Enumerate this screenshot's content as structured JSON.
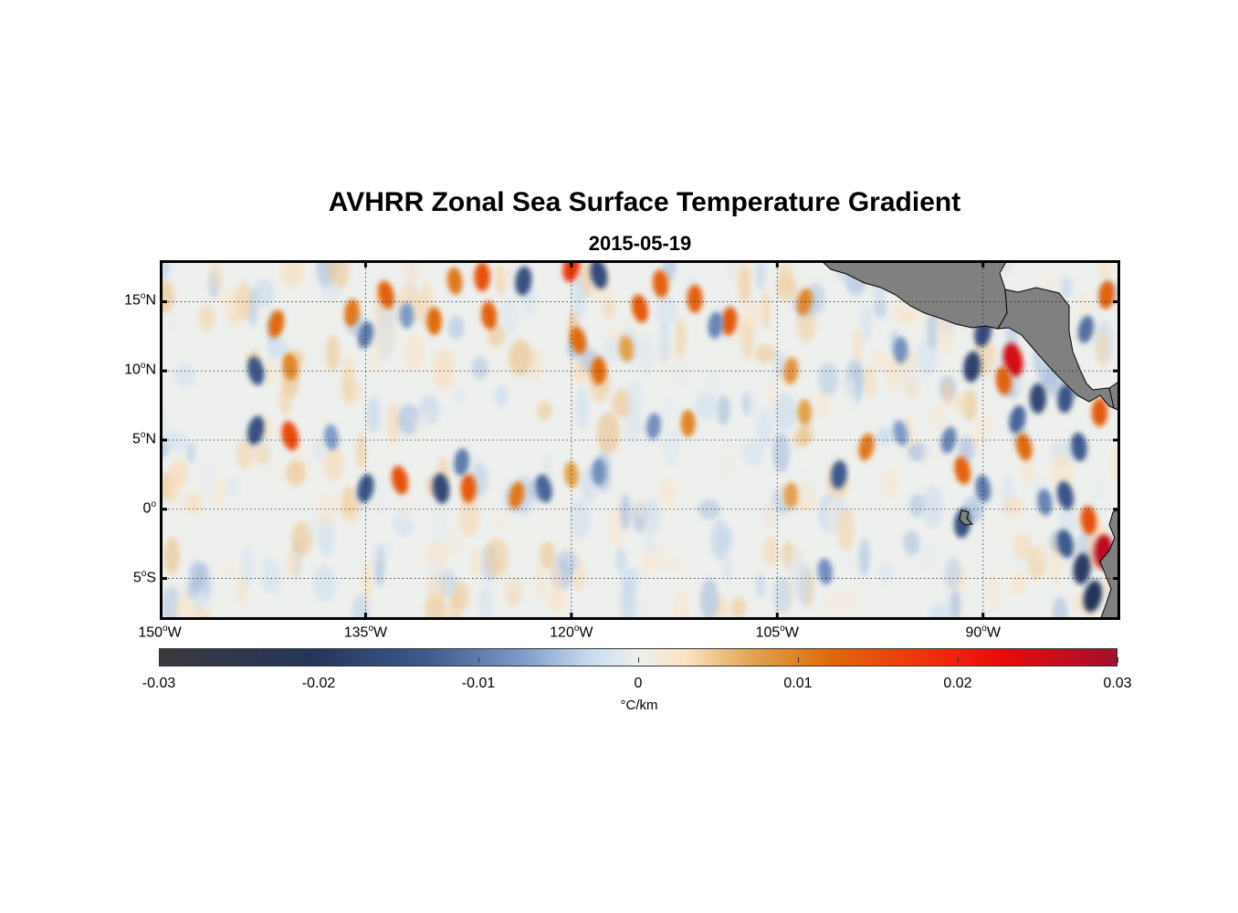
{
  "title": "AVHRR Zonal Sea Surface Temperature Gradient",
  "subtitle": "2015-05-19",
  "map": {
    "lon_range": [
      -150,
      -80
    ],
    "lat_range": [
      -8,
      18
    ],
    "gridlines": "dotted",
    "land_color": "#808080",
    "lat_ticks": [
      {
        "value": 15,
        "num": "15",
        "hemi": "N"
      },
      {
        "value": 10,
        "num": "10",
        "hemi": "N"
      },
      {
        "value": 5,
        "num": "5",
        "hemi": "N"
      },
      {
        "value": 0,
        "num": "0",
        "hemi": ""
      },
      {
        "value": -5,
        "num": "5",
        "hemi": "S"
      }
    ],
    "lon_ticks": [
      {
        "value": -150,
        "num": "150",
        "hemi": "W"
      },
      {
        "value": -135,
        "num": "135",
        "hemi": "W"
      },
      {
        "value": -120,
        "num": "120",
        "hemi": "W"
      },
      {
        "value": -105,
        "num": "105",
        "hemi": "W"
      },
      {
        "value": -90,
        "num": "90",
        "hemi": "W"
      }
    ],
    "features": [
      {
        "lon": -133.5,
        "lat": 15.5,
        "v": 0.011
      },
      {
        "lon": -128.5,
        "lat": 16.5,
        "v": 0.009
      },
      {
        "lon": -126.5,
        "lat": 16.8,
        "v": 0.013
      },
      {
        "lon": -123.5,
        "lat": 16.5,
        "v": -0.014
      },
      {
        "lon": -120.0,
        "lat": 17.5,
        "v": 0.016
      },
      {
        "lon": -118.0,
        "lat": 17.0,
        "v": -0.015
      },
      {
        "lon": -113.5,
        "lat": 16.3,
        "v": 0.011
      },
      {
        "lon": -111.0,
        "lat": 15.2,
        "v": 0.011
      },
      {
        "lon": -108.5,
        "lat": 13.6,
        "v": 0.012
      },
      {
        "lon": -103.0,
        "lat": 15.0,
        "v": 0.008
      },
      {
        "lon": -115.0,
        "lat": 14.5,
        "v": 0.012
      },
      {
        "lon": -126.0,
        "lat": 14.0,
        "v": 0.011
      },
      {
        "lon": -130.0,
        "lat": 13.6,
        "v": 0.01
      },
      {
        "lon": -136.0,
        "lat": 14.2,
        "v": 0.009
      },
      {
        "lon": -141.5,
        "lat": 13.4,
        "v": 0.01
      },
      {
        "lon": -119.5,
        "lat": 12.2,
        "v": 0.01
      },
      {
        "lon": -116.0,
        "lat": 11.6,
        "v": 0.006
      },
      {
        "lon": -132.0,
        "lat": 14.0,
        "v": -0.006
      },
      {
        "lon": -109.5,
        "lat": 13.3,
        "v": -0.008
      },
      {
        "lon": -135.0,
        "lat": 12.6,
        "v": -0.009
      },
      {
        "lon": -143.0,
        "lat": 10.0,
        "v": -0.013
      },
      {
        "lon": -140.5,
        "lat": 10.3,
        "v": 0.008
      },
      {
        "lon": -118.0,
        "lat": 10.0,
        "v": 0.01
      },
      {
        "lon": -104.0,
        "lat": 10.0,
        "v": 0.007
      },
      {
        "lon": -143.0,
        "lat": 5.7,
        "v": -0.014
      },
      {
        "lon": -140.5,
        "lat": 5.3,
        "v": 0.014
      },
      {
        "lon": -137.5,
        "lat": 5.2,
        "v": -0.006
      },
      {
        "lon": -111.5,
        "lat": 6.2,
        "v": 0.008
      },
      {
        "lon": -114.0,
        "lat": 6.0,
        "v": -0.007
      },
      {
        "lon": -135.0,
        "lat": 1.5,
        "v": -0.013
      },
      {
        "lon": -132.5,
        "lat": 2.1,
        "v": 0.013
      },
      {
        "lon": -129.5,
        "lat": 1.5,
        "v": -0.016
      },
      {
        "lon": -127.5,
        "lat": 1.5,
        "v": 0.012
      },
      {
        "lon": -128.0,
        "lat": 3.4,
        "v": -0.009
      },
      {
        "lon": -124.0,
        "lat": 1.0,
        "v": 0.009
      },
      {
        "lon": -122.0,
        "lat": 1.5,
        "v": -0.011
      },
      {
        "lon": -120.0,
        "lat": 2.5,
        "v": 0.006
      },
      {
        "lon": -118.0,
        "lat": 2.7,
        "v": -0.007
      },
      {
        "lon": -100.5,
        "lat": 2.5,
        "v": -0.012
      },
      {
        "lon": -98.5,
        "lat": 4.5,
        "v": 0.009
      },
      {
        "lon": -91.5,
        "lat": 2.8,
        "v": 0.011
      },
      {
        "lon": -90.0,
        "lat": 1.5,
        "v": -0.009
      },
      {
        "lon": -104.0,
        "lat": 1.0,
        "v": 0.006
      },
      {
        "lon": -91.5,
        "lat": -1.0,
        "v": -0.014
      },
      {
        "lon": -92.5,
        "lat": 5.0,
        "v": -0.008
      },
      {
        "lon": -96.0,
        "lat": 5.5,
        "v": -0.006
      },
      {
        "lon": -101.5,
        "lat": -4.5,
        "v": -0.007
      },
      {
        "lon": -103.0,
        "lat": 7.0,
        "v": 0.006
      },
      {
        "lon": -90.8,
        "lat": 10.3,
        "v": -0.017
      },
      {
        "lon": -90.0,
        "lat": 12.8,
        "v": -0.015
      },
      {
        "lon": -87.8,
        "lat": 10.8,
        "v": 0.024
      },
      {
        "lon": -88.5,
        "lat": 9.3,
        "v": 0.011
      },
      {
        "lon": -86.0,
        "lat": 8.0,
        "v": -0.016
      },
      {
        "lon": -84.0,
        "lat": 8.0,
        "v": -0.013
      },
      {
        "lon": -87.5,
        "lat": 6.5,
        "v": -0.011
      },
      {
        "lon": -87.0,
        "lat": 4.5,
        "v": 0.01
      },
      {
        "lon": -83.0,
        "lat": 4.5,
        "v": -0.012
      },
      {
        "lon": -81.5,
        "lat": 7.0,
        "v": 0.012
      },
      {
        "lon": -81.0,
        "lat": 15.5,
        "v": 0.011
      },
      {
        "lon": -82.5,
        "lat": 13.0,
        "v": -0.01
      },
      {
        "lon": -84.0,
        "lat": 1.0,
        "v": -0.013
      },
      {
        "lon": -82.3,
        "lat": -0.8,
        "v": 0.013
      },
      {
        "lon": -81.2,
        "lat": -3.1,
        "v": 0.027
      },
      {
        "lon": -82.8,
        "lat": -4.3,
        "v": -0.018
      },
      {
        "lon": -82.0,
        "lat": -6.3,
        "v": -0.02
      },
      {
        "lon": -84.0,
        "lat": -2.5,
        "v": -0.012
      },
      {
        "lon": -85.5,
        "lat": 0.5,
        "v": -0.008
      },
      {
        "lon": -96.0,
        "lat": 11.5,
        "v": -0.007
      }
    ]
  },
  "colorbar": {
    "ticks": [
      {
        "value": -0.03,
        "label": "-0.03"
      },
      {
        "value": -0.02,
        "label": "-0.02"
      },
      {
        "value": -0.01,
        "label": "-0.01"
      },
      {
        "value": 0,
        "label": "0"
      },
      {
        "value": 0.01,
        "label": "0.01"
      },
      {
        "value": 0.02,
        "label": "0.02"
      },
      {
        "value": 0.03,
        "label": "0.03"
      }
    ],
    "unit_symbol": "°",
    "unit": "C/km"
  }
}
